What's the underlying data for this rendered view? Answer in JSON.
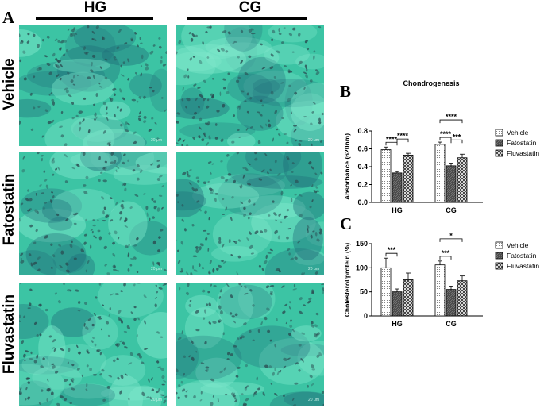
{
  "figure": {
    "panel_a_label": "A",
    "panel_b_label": "B",
    "panel_c_label": "C",
    "columns": [
      "HG",
      "CG"
    ],
    "rows": [
      "Vehicle",
      "Fatostatin",
      "Fluvastatin"
    ],
    "scale_bar_text": "20 μm",
    "micrograph_colors": {
      "base": "#3cc4a4",
      "light": "#7fe8cc",
      "dark": "#1e6a78",
      "nuclei": "#2a4a50"
    }
  },
  "chart_data": [
    {
      "type": "bar",
      "title": "Chondrogenesis",
      "ylabel": "Absorbance (620nm)",
      "xlabel": "",
      "categories": [
        "HG",
        "CG"
      ],
      "ylim": [
        0,
        0.8
      ],
      "yticks": [
        "0.0",
        "0.2",
        "0.4",
        "0.6",
        "0.8"
      ],
      "series": [
        {
          "name": "Vehicle",
          "values": [
            0.59,
            0.65
          ],
          "errors": [
            0.03,
            0.025
          ],
          "pattern": "dots"
        },
        {
          "name": "Fatostatin",
          "values": [
            0.33,
            0.41
          ],
          "errors": [
            0.015,
            0.03
          ],
          "pattern": "dark"
        },
        {
          "name": "Fluvastatin",
          "values": [
            0.53,
            0.5
          ],
          "errors": [
            0.02,
            0.04
          ],
          "pattern": "cross"
        }
      ],
      "significance": [
        {
          "category": 0,
          "from": 0,
          "to": 1,
          "label": "****"
        },
        {
          "category": 0,
          "from": 1,
          "to": 2,
          "label": "****"
        },
        {
          "category": 1,
          "from": 0,
          "to": 1,
          "label": "****"
        },
        {
          "category": 1,
          "from": 1,
          "to": 2,
          "label": "***"
        },
        {
          "category": 1,
          "from": 0,
          "to": 2,
          "label": "****"
        }
      ],
      "legend": [
        "Vehicle",
        "Fatostatin",
        "Fluvastatin"
      ]
    },
    {
      "type": "bar",
      "title": "",
      "ylabel": "Cholesterol/protein (%)",
      "xlabel": "",
      "categories": [
        "HG",
        "CG"
      ],
      "ylim": [
        0,
        150
      ],
      "yticks": [
        "0",
        "50",
        "100",
        "150"
      ],
      "series": [
        {
          "name": "Vehicle",
          "values": [
            100,
            106
          ],
          "errors": [
            20,
            8
          ],
          "pattern": "dots"
        },
        {
          "name": "Fatostatin",
          "values": [
            50,
            55
          ],
          "errors": [
            6,
            7
          ],
          "pattern": "dark"
        },
        {
          "name": "Fluvastatin",
          "values": [
            75,
            73
          ],
          "errors": [
            14,
            10
          ],
          "pattern": "cross"
        }
      ],
      "significance": [
        {
          "category": 0,
          "from": 0,
          "to": 1,
          "label": "***"
        },
        {
          "category": 1,
          "from": 0,
          "to": 1,
          "label": "***"
        },
        {
          "category": 1,
          "from": 0,
          "to": 2,
          "label": "*"
        }
      ],
      "legend": [
        "Vehicle",
        "Fatostatin",
        "Fluvastatin"
      ]
    }
  ]
}
